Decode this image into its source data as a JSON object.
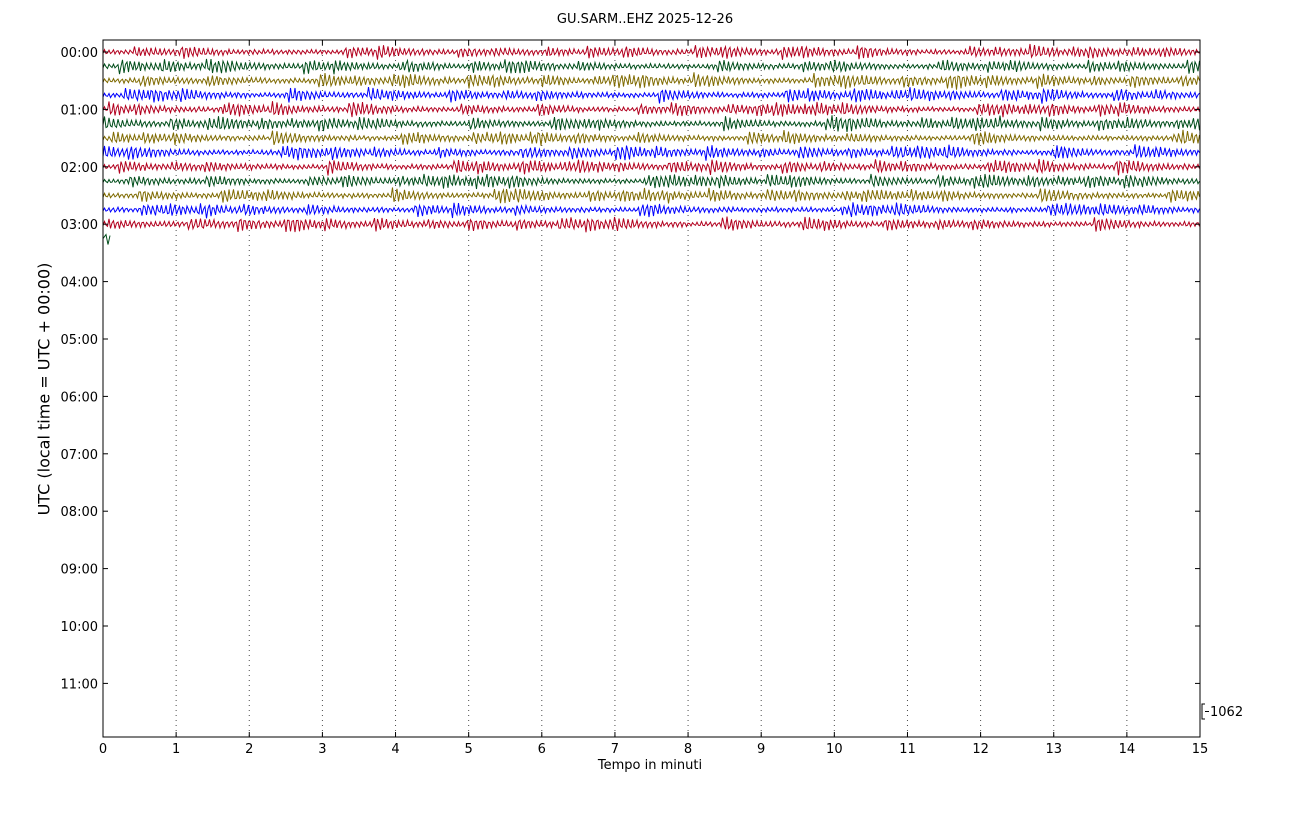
{
  "chart_data": {
    "type": "line",
    "title": "GU.SARM..EHZ 2025-12-26",
    "xlabel": "Tempo in minuti",
    "ylabel": "UTC (local time = UTC + 00:00)",
    "xlim": [
      0,
      15
    ],
    "x_ticks": [
      "0",
      "1",
      "2",
      "3",
      "4",
      "5",
      "6",
      "7",
      "8",
      "9",
      "10",
      "11",
      "12",
      "13",
      "14",
      "15"
    ],
    "y_ticks": [
      "00:00",
      "01:00",
      "02:00",
      "03:00",
      "04:00",
      "05:00",
      "06:00",
      "07:00",
      "08:00",
      "09:00",
      "10:00",
      "11:00"
    ],
    "grid": "vertical dotted at each minute",
    "scale_label": "1062",
    "trace_colors": [
      "#b2001e",
      "#004d1a",
      "#7f6a00",
      "#0000ff"
    ],
    "traces": [
      {
        "start": "00:00",
        "end_min": 15
      },
      {
        "start": "00:15",
        "end_min": 15
      },
      {
        "start": "00:30",
        "end_min": 15
      },
      {
        "start": "00:45",
        "end_min": 15
      },
      {
        "start": "01:00",
        "end_min": 15
      },
      {
        "start": "01:15",
        "end_min": 15
      },
      {
        "start": "01:30",
        "end_min": 15
      },
      {
        "start": "01:45",
        "end_min": 15
      },
      {
        "start": "02:00",
        "end_min": 15
      },
      {
        "start": "02:15",
        "end_min": 15
      },
      {
        "start": "02:30",
        "end_min": 15
      },
      {
        "start": "02:45",
        "end_min": 15
      },
      {
        "start": "03:00",
        "end_min": 15
      },
      {
        "start": "03:15",
        "end_min": 0.1
      }
    ]
  }
}
